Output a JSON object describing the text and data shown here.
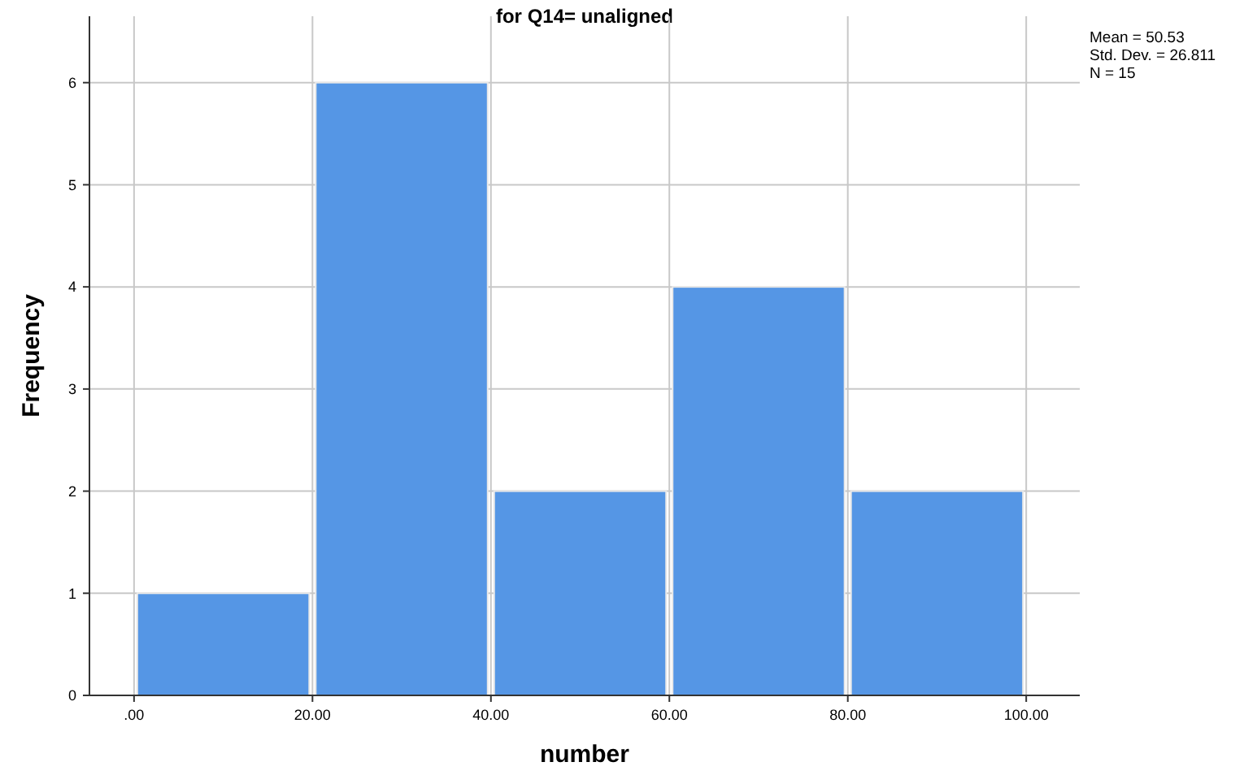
{
  "chart_data": {
    "type": "histogram",
    "title": "for Q14= unaligned",
    "xlabel": "number",
    "ylabel": "Frequency",
    "bins": [
      0,
      20,
      40,
      60,
      80,
      100
    ],
    "values": [
      1,
      6,
      2,
      4,
      2
    ],
    "color": "#5596e5",
    "xlim": [
      -5,
      106
    ],
    "xticks": [
      {
        "value": 0,
        "label": ".00"
      },
      {
        "value": 20,
        "label": "20.00"
      },
      {
        "value": 40,
        "label": "40.00"
      },
      {
        "value": 60,
        "label": "60.00"
      },
      {
        "value": 80,
        "label": "80.00"
      },
      {
        "value": 100,
        "label": "100.00"
      }
    ],
    "ylim": [
      0,
      6.65
    ],
    "yticks": [
      0,
      1,
      2,
      3,
      4,
      5,
      6
    ],
    "grid": true,
    "annotations": [
      "Mean = 50.53",
      "Std. Dev. = 26.811",
      "N = 15"
    ]
  }
}
